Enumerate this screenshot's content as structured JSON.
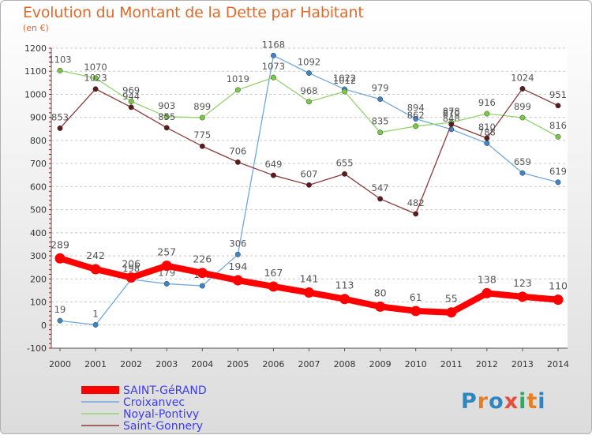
{
  "title": "Evolution du Montant de la Dette par Habitant",
  "unit": "(en €)",
  "logo": {
    "text": "Proxiti",
    "colors": [
      "#2e86c1",
      "#e67e22",
      "#2e86c1",
      "#e74c3c",
      "#27ae60",
      "#e67e22",
      "#2e86c1"
    ]
  },
  "chart_data": {
    "type": "line",
    "title": "Evolution du Montant de la Dette par Habitant",
    "ylabel": "(en €)",
    "x": [
      "2000",
      "2001",
      "2002",
      "2003",
      "2004",
      "2005",
      "2006",
      "2007",
      "2008",
      "2009",
      "2010",
      "2011",
      "2012",
      "2013",
      "2014"
    ],
    "ylim": [
      -100,
      1200
    ],
    "yticks": [
      -100,
      0,
      100,
      200,
      300,
      400,
      500,
      600,
      700,
      800,
      900,
      1000,
      1100,
      1200
    ],
    "grid": "dashed-horizontal",
    "legend": "bottom-left",
    "series": [
      {
        "name": "SAINT-GéRAND",
        "color": "#ff0000",
        "marker": "#ff0000",
        "width": 8,
        "main": true,
        "values": [
          289,
          242,
          206,
          257,
          226,
          194,
          167,
          141,
          113,
          80,
          61,
          55,
          138,
          123,
          110
        ]
      },
      {
        "name": "Croixanvec",
        "color": "#6fa8dc",
        "marker": "#3d85c6",
        "width": 1.3,
        "values": [
          19,
          1,
          198,
          179,
          170,
          306,
          1168,
          1092,
          1022,
          979,
          894,
          848,
          788,
          659,
          619
        ]
      },
      {
        "name": "Noyal-Pontivy",
        "color": "#93d36f",
        "marker": "#7ac943",
        "width": 1.3,
        "values": [
          1103,
          1070,
          969,
          903,
          899,
          1019,
          1073,
          968,
          1012,
          835,
          862,
          878,
          916,
          899,
          816
        ]
      },
      {
        "name": "Saint-Gonnery",
        "color": "#8b3a3a",
        "marker": "#5c1a1a",
        "width": 1.3,
        "values": [
          853,
          1023,
          944,
          855,
          775,
          706,
          649,
          607,
          655,
          547,
          482,
          870,
          810,
          1024,
          951
        ]
      }
    ]
  }
}
